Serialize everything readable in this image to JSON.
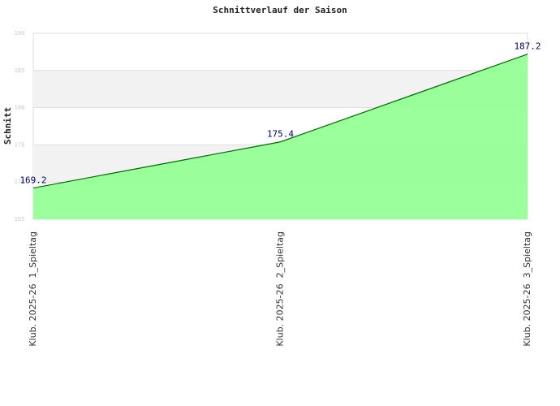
{
  "chart_data": {
    "type": "area",
    "title": "Schnittverlauf der Saison",
    "ylabel": "Schnitt",
    "categories": [
      "Klub. 2025-26  1_Spieltag",
      "Klub. 2025-26  2_Spieltag",
      "Klub. 2025-26  3_Spieltag"
    ],
    "values": [
      169.2,
      175.4,
      187.2
    ],
    "color": "#00cc00",
    "fill": "#90ff90",
    "ylim": [
      165,
      190
    ],
    "yticks": [
      165,
      170,
      175,
      180,
      185,
      190
    ],
    "grid": true
  }
}
